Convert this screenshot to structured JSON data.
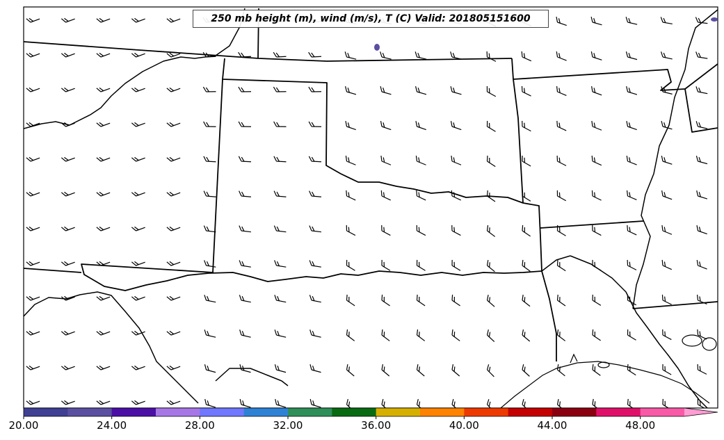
{
  "title": "250 mb height (m), wind (m/s), T (C) Valid: 201805151600",
  "colorbar": {
    "ticks": [
      "20.00",
      "24.00",
      "28.00",
      "32.00",
      "36.00",
      "40.00",
      "44.00",
      "48.00"
    ],
    "colors": [
      "#3f3f94",
      "#5a4fa0",
      "#4b0fa6",
      "#a676e6",
      "#6f78ff",
      "#2e82d6",
      "#2f8f59",
      "#086b12",
      "#d6b000",
      "#ff8200",
      "#ee3a00",
      "#c40000",
      "#8b0010",
      "#e0106a",
      "#f85aa8",
      "#ff9cd3"
    ]
  },
  "map": {
    "projection_feature_layers": [
      "state-borders",
      "coastline",
      "rivers",
      "wind-barbs",
      "temperature-fill"
    ],
    "temperature_patches": [
      {
        "name": "patch-north",
        "color": "#5a4fa0"
      },
      {
        "name": "patch-northeast",
        "color": "#5a4fa0"
      }
    ]
  }
}
